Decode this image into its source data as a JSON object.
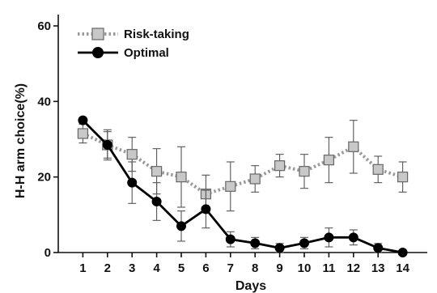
{
  "chart_data": {
    "type": "line",
    "xlabel": "Days",
    "ylabel": "H-H arm choice(%)",
    "x": [
      1,
      2,
      3,
      4,
      5,
      6,
      7,
      8,
      9,
      10,
      11,
      12,
      13,
      14
    ],
    "x_tick_labels": [
      "1",
      "2",
      "3",
      "4",
      "5",
      "6",
      "7",
      "8",
      "9",
      "10",
      "11",
      "12",
      "13",
      "14"
    ],
    "y_ticks": [
      0,
      20,
      40,
      60
    ],
    "y_tick_labels": [
      "0",
      "20",
      "40",
      "60"
    ],
    "ylim": [
      0,
      63
    ],
    "xlim": [
      0,
      15
    ],
    "grid": false,
    "legend_position": "top-left",
    "series": [
      {
        "name": "Risk-taking",
        "marker": "square",
        "line_style": "dotted",
        "color": "#9a9a9a",
        "marker_fill": "#c8c8c8",
        "values": [
          31.5,
          28.5,
          26,
          21.5,
          20,
          15.5,
          17.5,
          19.5,
          23,
          21.5,
          24.5,
          28,
          22,
          20
        ],
        "error": [
          2.5,
          3.5,
          4.5,
          6,
          8,
          5,
          6.5,
          3.5,
          3,
          4.5,
          6,
          7,
          3.5,
          4
        ]
      },
      {
        "name": "Optimal",
        "marker": "circle",
        "line_style": "solid",
        "color": "#000000",
        "marker_fill": "#000000",
        "values": [
          35,
          28.5,
          18.5,
          13.5,
          7,
          11.5,
          3.5,
          2.5,
          1.2,
          2.5,
          4,
          4,
          1.2,
          0
        ],
        "error": [
          0,
          4,
          5.5,
          5,
          4,
          5,
          2,
          1.5,
          1.2,
          1.5,
          2.5,
          2,
          1.2,
          0
        ]
      }
    ]
  }
}
